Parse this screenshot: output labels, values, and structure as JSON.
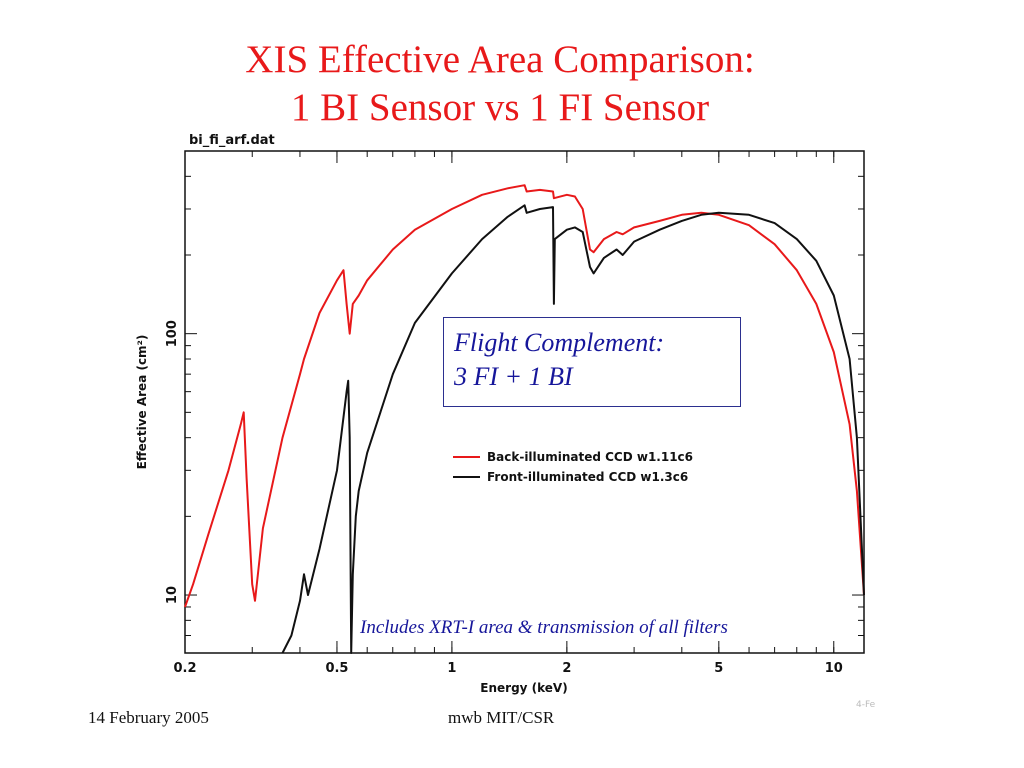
{
  "slide": {
    "title_line1": "XIS Effective Area Comparison:",
    "title_line2": "1 BI Sensor vs 1 FI Sensor",
    "footer_date": "14 February 2005",
    "footer_center": "mwb MIT/CSR",
    "corner_mark": "4-Fe",
    "annotation_line1": "Flight Complement:",
    "annotation_line2": "3 FI + 1 BI",
    "includes_note": "Includes XRT-I area & transmission of all filters",
    "accent_color": "#e8191a",
    "annotation_color": "#16169a"
  },
  "chart_data": {
    "type": "line",
    "file_label": "bi_fi_arf.dat",
    "xlabel": "Energy (keV)",
    "ylabel": "Effective Area (cm²)",
    "xscale": "log",
    "yscale": "log",
    "xlim": [
      0.2,
      12
    ],
    "ylim": [
      6,
      500
    ],
    "x_ticks": [
      {
        "value": 0.2,
        "label": "0.2"
      },
      {
        "value": 0.5,
        "label": "0.5"
      },
      {
        "value": 1,
        "label": "1"
      },
      {
        "value": 2,
        "label": "2"
      },
      {
        "value": 5,
        "label": "5"
      },
      {
        "value": 10,
        "label": "10"
      }
    ],
    "y_ticks": [
      {
        "value": 10,
        "label": "10"
      },
      {
        "value": 100,
        "label": "100"
      }
    ],
    "legend_position": "center-right",
    "series": [
      {
        "name": "Back-illuminated CCD w1.11c6",
        "color": "#e8191a",
        "points": [
          [
            0.2,
            9
          ],
          [
            0.21,
            11
          ],
          [
            0.23,
            17
          ],
          [
            0.26,
            30
          ],
          [
            0.28,
            45
          ],
          [
            0.285,
            50
          ],
          [
            0.29,
            28
          ],
          [
            0.3,
            11
          ],
          [
            0.305,
            9.5
          ],
          [
            0.32,
            18
          ],
          [
            0.36,
            40
          ],
          [
            0.4,
            70
          ],
          [
            0.41,
            80
          ],
          [
            0.45,
            120
          ],
          [
            0.5,
            160
          ],
          [
            0.52,
            175
          ],
          [
            0.53,
            130
          ],
          [
            0.54,
            100
          ],
          [
            0.55,
            130
          ],
          [
            0.57,
            140
          ],
          [
            0.6,
            160
          ],
          [
            0.7,
            210
          ],
          [
            0.8,
            250
          ],
          [
            1.0,
            300
          ],
          [
            1.2,
            340
          ],
          [
            1.4,
            360
          ],
          [
            1.55,
            370
          ],
          [
            1.57,
            350
          ],
          [
            1.7,
            355
          ],
          [
            1.84,
            350
          ],
          [
            1.85,
            330
          ],
          [
            2.0,
            340
          ],
          [
            2.1,
            335
          ],
          [
            2.2,
            300
          ],
          [
            2.3,
            210
          ],
          [
            2.35,
            205
          ],
          [
            2.5,
            230
          ],
          [
            2.7,
            245
          ],
          [
            2.8,
            240
          ],
          [
            3.0,
            255
          ],
          [
            3.5,
            270
          ],
          [
            4.0,
            285
          ],
          [
            4.5,
            290
          ],
          [
            5.0,
            285
          ],
          [
            6.0,
            260
          ],
          [
            7.0,
            220
          ],
          [
            8.0,
            175
          ],
          [
            9.0,
            130
          ],
          [
            10.0,
            85
          ],
          [
            11.0,
            45
          ],
          [
            11.5,
            25
          ],
          [
            12.0,
            10
          ]
        ]
      },
      {
        "name": "Front-illuminated CCD w1.3c6",
        "color": "#111111",
        "points": [
          [
            0.36,
            6
          ],
          [
            0.38,
            7
          ],
          [
            0.4,
            9.5
          ],
          [
            0.41,
            12
          ],
          [
            0.42,
            10
          ],
          [
            0.45,
            15
          ],
          [
            0.5,
            30
          ],
          [
            0.53,
            60
          ],
          [
            0.535,
            66
          ],
          [
            0.54,
            40
          ],
          [
            0.545,
            6
          ],
          [
            0.55,
            12
          ],
          [
            0.56,
            20
          ],
          [
            0.57,
            25
          ],
          [
            0.6,
            35
          ],
          [
            0.7,
            70
          ],
          [
            0.8,
            110
          ],
          [
            1.0,
            170
          ],
          [
            1.2,
            230
          ],
          [
            1.4,
            280
          ],
          [
            1.55,
            310
          ],
          [
            1.57,
            290
          ],
          [
            1.7,
            300
          ],
          [
            1.84,
            305
          ],
          [
            1.85,
            130
          ],
          [
            1.86,
            230
          ],
          [
            2.0,
            250
          ],
          [
            2.1,
            255
          ],
          [
            2.2,
            245
          ],
          [
            2.3,
            180
          ],
          [
            2.35,
            170
          ],
          [
            2.5,
            195
          ],
          [
            2.7,
            210
          ],
          [
            2.8,
            200
          ],
          [
            3.0,
            225
          ],
          [
            3.5,
            250
          ],
          [
            4.0,
            270
          ],
          [
            4.5,
            285
          ],
          [
            5.0,
            290
          ],
          [
            6.0,
            285
          ],
          [
            7.0,
            265
          ],
          [
            8.0,
            230
          ],
          [
            9.0,
            190
          ],
          [
            10.0,
            140
          ],
          [
            11.0,
            80
          ],
          [
            11.5,
            40
          ],
          [
            12.0,
            10
          ]
        ]
      }
    ]
  }
}
